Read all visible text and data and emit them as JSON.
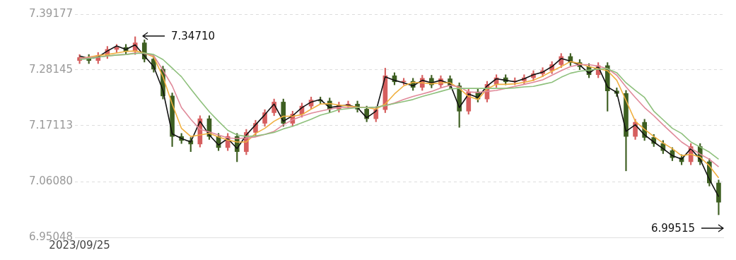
{
  "chart_data": {
    "type": "candlestick",
    "categories": [
      "2023/09/25",
      null,
      null,
      null,
      null,
      null,
      null,
      null,
      null,
      null,
      null,
      null,
      null,
      null,
      null,
      null,
      null,
      null,
      null,
      null,
      null,
      null,
      null,
      null,
      null,
      null,
      null,
      null,
      null,
      null,
      null,
      null,
      null,
      null,
      null,
      null,
      null,
      null,
      null,
      null,
      null,
      null,
      null,
      null,
      null,
      null,
      null,
      null,
      null,
      null,
      null,
      null,
      null,
      null,
      null,
      null,
      null,
      null,
      null,
      null,
      null,
      null,
      null,
      null,
      null,
      null,
      null,
      null,
      null,
      null
    ],
    "ohlc": [
      [
        7.3,
        7.312,
        7.294,
        7.306
      ],
      [
        7.306,
        7.312,
        7.294,
        7.3
      ],
      [
        7.3,
        7.316,
        7.294,
        7.31
      ],
      [
        7.31,
        7.328,
        7.304,
        7.322
      ],
      [
        7.322,
        7.332,
        7.316,
        7.326
      ],
      [
        7.326,
        7.332,
        7.312,
        7.318
      ],
      [
        7.318,
        7.3471,
        7.312,
        7.335
      ],
      [
        7.335,
        7.341,
        7.297,
        7.303
      ],
      [
        7.303,
        7.309,
        7.277,
        7.283
      ],
      [
        7.283,
        7.289,
        7.224,
        7.23
      ],
      [
        7.23,
        7.236,
        7.13,
        7.15
      ],
      [
        7.15,
        7.156,
        7.136,
        7.142
      ],
      [
        7.142,
        7.148,
        7.12,
        7.135
      ],
      [
        7.135,
        7.191,
        7.129,
        7.185
      ],
      [
        7.185,
        7.191,
        7.144,
        7.15
      ],
      [
        7.15,
        7.156,
        7.122,
        7.128
      ],
      [
        7.128,
        7.156,
        7.122,
        7.15
      ],
      [
        7.15,
        7.156,
        7.1,
        7.12
      ],
      [
        7.12,
        7.164,
        7.114,
        7.158
      ],
      [
        7.158,
        7.182,
        7.152,
        7.176
      ],
      [
        7.176,
        7.203,
        7.17,
        7.197
      ],
      [
        7.197,
        7.224,
        7.191,
        7.218
      ],
      [
        7.218,
        7.224,
        7.17,
        7.176
      ],
      [
        7.176,
        7.2,
        7.17,
        7.194
      ],
      [
        7.194,
        7.216,
        7.188,
        7.21
      ],
      [
        7.21,
        7.228,
        7.204,
        7.222
      ],
      [
        7.222,
        7.228,
        7.214,
        7.22
      ],
      [
        7.22,
        7.226,
        7.198,
        7.204
      ],
      [
        7.204,
        7.218,
        7.198,
        7.212
      ],
      [
        7.212,
        7.22,
        7.206,
        7.214
      ],
      [
        7.214,
        7.22,
        7.198,
        7.204
      ],
      [
        7.204,
        7.21,
        7.179,
        7.185
      ],
      [
        7.185,
        7.209,
        7.179,
        7.203
      ],
      [
        7.203,
        7.285,
        7.197,
        7.27
      ],
      [
        7.27,
        7.276,
        7.252,
        7.258
      ],
      [
        7.258,
        7.265,
        7.252,
        7.259
      ],
      [
        7.259,
        7.265,
        7.241,
        7.247
      ],
      [
        7.247,
        7.271,
        7.241,
        7.265
      ],
      [
        7.265,
        7.271,
        7.246,
        7.252
      ],
      [
        7.252,
        7.27,
        7.246,
        7.264
      ],
      [
        7.264,
        7.27,
        7.244,
        7.25
      ],
      [
        7.25,
        7.256,
        7.168,
        7.2
      ],
      [
        7.2,
        7.244,
        7.194,
        7.238
      ],
      [
        7.238,
        7.244,
        7.218,
        7.224
      ],
      [
        7.224,
        7.259,
        7.218,
        7.253
      ],
      [
        7.253,
        7.272,
        7.247,
        7.266
      ],
      [
        7.266,
        7.272,
        7.252,
        7.258
      ],
      [
        7.258,
        7.266,
        7.252,
        7.26
      ],
      [
        7.26,
        7.272,
        7.254,
        7.266
      ],
      [
        7.266,
        7.28,
        7.26,
        7.274
      ],
      [
        7.274,
        7.286,
        7.268,
        7.28
      ],
      [
        7.28,
        7.298,
        7.274,
        7.292
      ],
      [
        7.292,
        7.314,
        7.286,
        7.308
      ],
      [
        7.308,
        7.314,
        7.29,
        7.296
      ],
      [
        7.296,
        7.302,
        7.282,
        7.288
      ],
      [
        7.288,
        7.294,
        7.266,
        7.272
      ],
      [
        7.272,
        7.296,
        7.266,
        7.29
      ],
      [
        7.29,
        7.296,
        7.2,
        7.24
      ],
      [
        7.24,
        7.246,
        7.229,
        7.235
      ],
      [
        7.235,
        7.241,
        7.082,
        7.15
      ],
      [
        7.15,
        7.184,
        7.144,
        7.178
      ],
      [
        7.178,
        7.184,
        7.142,
        7.148
      ],
      [
        7.148,
        7.154,
        7.13,
        7.136
      ],
      [
        7.136,
        7.142,
        7.116,
        7.122
      ],
      [
        7.122,
        7.128,
        7.102,
        7.108
      ],
      [
        7.108,
        7.114,
        7.094,
        7.1
      ],
      [
        7.1,
        7.136,
        7.094,
        7.13
      ],
      [
        7.13,
        7.136,
        7.094,
        7.1
      ],
      [
        7.1,
        7.106,
        7.052,
        7.058
      ],
      [
        7.058,
        7.064,
        6.99515,
        7.02
      ]
    ],
    "colors": [
      "#d65f5f",
      "#3e5f22",
      "#d65f5f",
      "#d65f5f",
      "#d65f5f",
      "#3e5f22",
      "#d65f5f",
      "#3e5f22",
      "#3e5f22",
      "#3e5f22",
      "#3e5f22",
      "#3e5f22",
      "#3e5f22",
      "#d65f5f",
      "#3e5f22",
      "#3e5f22",
      "#d65f5f",
      "#3e5f22",
      "#d65f5f",
      "#d65f5f",
      "#d65f5f",
      "#d65f5f",
      "#3e5f22",
      "#d65f5f",
      "#d65f5f",
      "#d65f5f",
      "#3e5f22",
      "#3e5f22",
      "#d65f5f",
      "#d65f5f",
      "#3e5f22",
      "#3e5f22",
      "#d65f5f",
      "#d65f5f",
      "#3e5f22",
      "#d65f5f",
      "#3e5f22",
      "#d65f5f",
      "#3e5f22",
      "#d65f5f",
      "#3e5f22",
      "#3e5f22",
      "#d65f5f",
      "#3e5f22",
      "#d65f5f",
      "#d65f5f",
      "#3e5f22",
      "#d65f5f",
      "#d65f5f",
      "#d65f5f",
      "#d65f5f",
      "#d65f5f",
      "#d65f5f",
      "#3e5f22",
      "#3e5f22",
      "#3e5f22",
      "#d65f5f",
      "#3e5f22",
      "#3e5f22",
      "#3e5f22",
      "#d65f5f",
      "#3e5f22",
      "#3e5f22",
      "#3e5f22",
      "#3e5f22",
      "#3e5f22",
      "#d65f5f",
      "#3e5f22",
      "#3e5f22",
      "#3e5f22"
    ],
    "series": [
      {
        "type": "line",
        "color": "#8ec07c",
        "values": [
          7.302,
          7.304,
          7.307,
          7.309,
          7.311,
          7.312,
          7.314,
          7.315,
          7.312,
          7.302,
          7.285,
          7.268,
          7.244,
          7.221,
          7.199,
          7.18,
          7.162,
          7.153,
          7.15,
          7.151,
          7.154,
          7.158,
          7.165,
          7.17,
          7.177,
          7.184,
          7.192,
          7.197,
          7.203,
          7.205,
          7.207,
          7.207,
          7.208,
          7.211,
          7.215,
          7.219,
          7.223,
          7.229,
          7.234,
          7.239,
          7.244,
          7.245,
          7.245,
          7.245,
          7.245,
          7.245,
          7.245,
          7.246,
          7.248,
          7.249,
          7.253,
          7.257,
          7.267,
          7.275,
          7.279,
          7.281,
          7.283,
          7.284,
          7.276,
          7.256,
          7.241,
          7.227,
          7.2,
          7.183,
          7.166,
          7.156,
          7.139,
          7.129,
          7.119,
          7.105
        ]
      },
      {
        "type": "line",
        "color": "#e08a9a",
        "values": [
          7.304,
          7.306,
          7.307,
          7.309,
          7.311,
          7.312,
          7.315,
          7.314,
          7.31,
          7.281,
          7.25,
          7.207,
          7.184,
          7.164,
          7.159,
          7.153,
          7.147,
          7.146,
          7.147,
          7.149,
          7.154,
          7.16,
          7.173,
          7.183,
          7.19,
          7.196,
          7.2,
          7.204,
          7.207,
          7.207,
          7.207,
          7.207,
          7.208,
          7.211,
          7.216,
          7.223,
          7.229,
          7.234,
          7.239,
          7.246,
          7.251,
          7.248,
          7.238,
          7.237,
          7.239,
          7.241,
          7.245,
          7.249,
          7.253,
          7.257,
          7.262,
          7.271,
          7.28,
          7.288,
          7.292,
          7.292,
          7.289,
          7.284,
          7.271,
          7.248,
          7.227,
          7.207,
          7.191,
          7.173,
          7.156,
          7.139,
          7.127,
          7.115,
          7.105,
          7.09
        ]
      },
      {
        "type": "line",
        "color": "#f0b040",
        "values": [
          7.304,
          7.307,
          7.31,
          7.312,
          7.315,
          7.318,
          7.319,
          7.315,
          7.307,
          7.268,
          7.214,
          7.166,
          7.15,
          7.153,
          7.156,
          7.149,
          7.143,
          7.139,
          7.139,
          7.156,
          7.166,
          7.18,
          7.19,
          7.19,
          7.193,
          7.204,
          7.214,
          7.215,
          7.212,
          7.21,
          7.208,
          7.207,
          7.204,
          7.214,
          7.234,
          7.25,
          7.257,
          7.256,
          7.254,
          7.256,
          7.256,
          7.245,
          7.229,
          7.223,
          7.244,
          7.253,
          7.253,
          7.254,
          7.257,
          7.261,
          7.269,
          7.279,
          7.288,
          7.298,
          7.294,
          7.288,
          7.284,
          7.28,
          7.261,
          7.221,
          7.18,
          7.164,
          7.15,
          7.137,
          7.126,
          7.112,
          7.115,
          7.109,
          7.092,
          7.068
        ]
      },
      {
        "type": "line",
        "color": "#111111",
        "values": [
          7.309,
          7.304,
          7.307,
          7.319,
          7.329,
          7.322,
          7.331,
          7.309,
          7.288,
          7.241,
          7.155,
          7.146,
          7.139,
          7.18,
          7.153,
          7.133,
          7.146,
          7.126,
          7.153,
          7.173,
          7.193,
          7.214,
          7.18,
          7.191,
          7.207,
          7.218,
          7.223,
          7.207,
          7.21,
          7.212,
          7.207,
          7.187,
          7.2,
          7.268,
          7.261,
          7.256,
          7.25,
          7.261,
          7.256,
          7.261,
          7.254,
          7.207,
          7.234,
          7.227,
          7.25,
          7.264,
          7.261,
          7.258,
          7.264,
          7.272,
          7.277,
          7.288,
          7.304,
          7.299,
          7.291,
          7.275,
          7.288,
          7.248,
          7.237,
          7.16,
          7.173,
          7.153,
          7.139,
          7.126,
          7.112,
          7.105,
          7.126,
          7.105,
          7.065,
          7.031
        ]
      }
    ],
    "ylim": [
      6.95048,
      7.39177
    ],
    "yticks": [
      {
        "value": 6.95048,
        "label": "6.95048"
      },
      {
        "value": 7.0608,
        "label": "7.06080"
      },
      {
        "value": 7.17113,
        "label": "7.17113"
      },
      {
        "value": 7.28145,
        "label": "7.28145"
      },
      {
        "value": 7.39177,
        "label": "7.39177"
      }
    ],
    "grid": "y",
    "annotations": [
      "7.34710",
      "6.99515"
    ]
  }
}
